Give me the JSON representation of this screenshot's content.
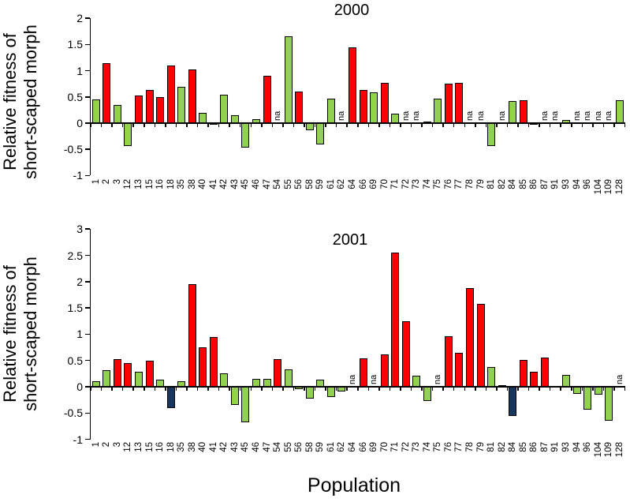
{
  "figure": {
    "xlabel": "Population",
    "na_text": "na"
  },
  "colors": {
    "red": "#fe0000",
    "green": "#92d050",
    "navy": "#17375e",
    "bar_border": "#000000",
    "axis": "#000000"
  },
  "chart_data": [
    {
      "type": "bar",
      "title": "2000",
      "ylabel": "Relative fitness of short-scaped morph",
      "ylabel_lines": [
        "Relative fitness of",
        "short-scaped morph"
      ],
      "xlabel": "Population",
      "ylim": [
        -1,
        2
      ],
      "ytick_labels": [
        "2",
        "1.5",
        "1",
        "0.5",
        "0",
        "-0.5",
        "-1"
      ],
      "grid": false,
      "legend": false,
      "categories": [
        "1",
        "2",
        "3",
        "12",
        "13",
        "15",
        "16",
        "18",
        "35",
        "38",
        "40",
        "41",
        "42",
        "43",
        "45",
        "46",
        "47",
        "54",
        "55",
        "56",
        "58",
        "59",
        "61",
        "62",
        "64",
        "66",
        "69",
        "70",
        "71",
        "72",
        "73",
        "74",
        "75",
        "76",
        "77",
        "78",
        "79",
        "81",
        "82",
        "84",
        "85",
        "86",
        "87",
        "91",
        "93",
        "94",
        "96",
        "104",
        "109",
        "128"
      ],
      "values": [
        0.45,
        1.15,
        0.34,
        -0.44,
        0.52,
        0.63,
        0.49,
        1.1,
        0.7,
        1.02,
        0.19,
        -0.02,
        0.54,
        0.15,
        -0.46,
        0.08,
        0.9,
        null,
        1.65,
        0.6,
        -0.13,
        -0.4,
        0.47,
        null,
        1.45,
        0.63,
        0.59,
        0.77,
        0.18,
        null,
        null,
        0.03,
        0.46,
        0.75,
        0.77,
        null,
        null,
        -0.44,
        null,
        0.42,
        0.44,
        -0.03,
        null,
        null,
        0.06,
        null,
        null,
        null,
        null,
        0.43
      ],
      "bar_colors": [
        "green",
        "red",
        "green",
        "green",
        "red",
        "red",
        "red",
        "red",
        "green",
        "red",
        "green",
        "green",
        "green",
        "green",
        "green",
        "green",
        "red",
        null,
        "green",
        "red",
        "green",
        "green",
        "green",
        null,
        "red",
        "red",
        "green",
        "red",
        "green",
        null,
        null,
        "green",
        "green",
        "red",
        "red",
        null,
        null,
        "green",
        null,
        "green",
        "red",
        "green",
        null,
        null,
        "green",
        null,
        null,
        null,
        null,
        "green"
      ]
    },
    {
      "type": "bar",
      "title": "2001",
      "ylabel": "Relative fitness of short-scaped morph",
      "ylabel_lines": [
        "Relative fitness of",
        "short-scaped morph"
      ],
      "xlabel": "Population",
      "ylim": [
        -1,
        3
      ],
      "ytick_labels": [
        "3",
        "2.5",
        "2",
        "1.5",
        "1",
        "0.5",
        "0",
        "-0.5",
        "-1"
      ],
      "grid": false,
      "legend": false,
      "categories": [
        "1",
        "2",
        "3",
        "12",
        "13",
        "15",
        "16",
        "18",
        "35",
        "38",
        "40",
        "41",
        "42",
        "43",
        "45",
        "46",
        "47",
        "54",
        "55",
        "56",
        "58",
        "59",
        "61",
        "62",
        "64",
        "66",
        "69",
        "70",
        "71",
        "72",
        "73",
        "74",
        "75",
        "76",
        "77",
        "78",
        "79",
        "81",
        "82",
        "84",
        "85",
        "86",
        "87",
        "91",
        "93",
        "94",
        "96",
        "104",
        "109",
        "128"
      ],
      "values": [
        0.1,
        0.31,
        0.52,
        0.45,
        0.29,
        0.5,
        0.13,
        -0.4,
        0.1,
        1.95,
        0.75,
        0.95,
        0.25,
        -0.35,
        -0.68,
        0.15,
        0.15,
        0.52,
        0.33,
        -0.04,
        -0.22,
        0.14,
        -0.2,
        -0.09,
        null,
        0.54,
        null,
        0.62,
        2.55,
        1.25,
        0.21,
        -0.27,
        null,
        0.96,
        0.65,
        1.88,
        1.58,
        0.37,
        0.03,
        -0.55,
        0.51,
        0.28,
        0.55,
        0.02,
        0.22,
        -0.13,
        -0.43,
        -0.15,
        -0.65,
        null
      ],
      "bar_colors": [
        "green",
        "green",
        "red",
        "red",
        "green",
        "red",
        "green",
        "navy",
        "green",
        "red",
        "red",
        "red",
        "green",
        "green",
        "green",
        "green",
        "green",
        "red",
        "green",
        "green",
        "green",
        "green",
        "green",
        "green",
        null,
        "red",
        null,
        "red",
        "red",
        "red",
        "green",
        "green",
        null,
        "red",
        "red",
        "red",
        "red",
        "green",
        "green",
        "navy",
        "red",
        "red",
        "red",
        "green",
        "green",
        "green",
        "green",
        "green",
        "green",
        null
      ]
    }
  ]
}
